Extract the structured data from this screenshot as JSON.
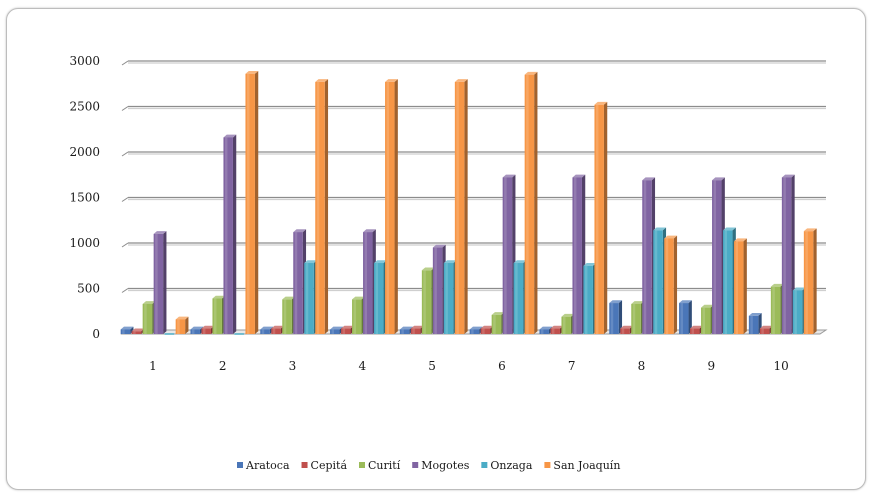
{
  "chart_data": {
    "type": "bar",
    "categories": [
      "1",
      "2",
      "3",
      "4",
      "5",
      "6",
      "7",
      "8",
      "9",
      "10"
    ],
    "ylim": [
      0,
      3000
    ],
    "yticks": [
      0,
      500,
      1000,
      1500,
      2000,
      2500,
      3000
    ],
    "grid": true,
    "legend_position": "bottom",
    "series": [
      {
        "name": "Aratoca",
        "color": "#4a76b8",
        "values": [
          50,
          50,
          50,
          50,
          50,
          50,
          50,
          340,
          340,
          200
        ]
      },
      {
        "name": "Cepitá",
        "color": "#c0504d",
        "values": [
          30,
          60,
          60,
          60,
          60,
          60,
          60,
          60,
          60,
          60
        ]
      },
      {
        "name": "Curití",
        "color": "#9bbb59",
        "values": [
          330,
          390,
          380,
          380,
          700,
          210,
          190,
          330,
          290,
          520
        ]
      },
      {
        "name": "Mogotes",
        "color": "#8064a2",
        "values": [
          1100,
          2160,
          1120,
          1120,
          950,
          1720,
          1720,
          1690,
          1690,
          1720
        ]
      },
      {
        "name": "Onzaga",
        "color": "#4bacc6",
        "values": [
          0,
          0,
          780,
          780,
          780,
          780,
          750,
          1140,
          1140,
          480
        ]
      },
      {
        "name": "San Joaquín",
        "color": "#f79646",
        "values": [
          160,
          2860,
          2770,
          2770,
          2770,
          2850,
          2520,
          1050,
          1020,
          1130
        ]
      }
    ]
  }
}
